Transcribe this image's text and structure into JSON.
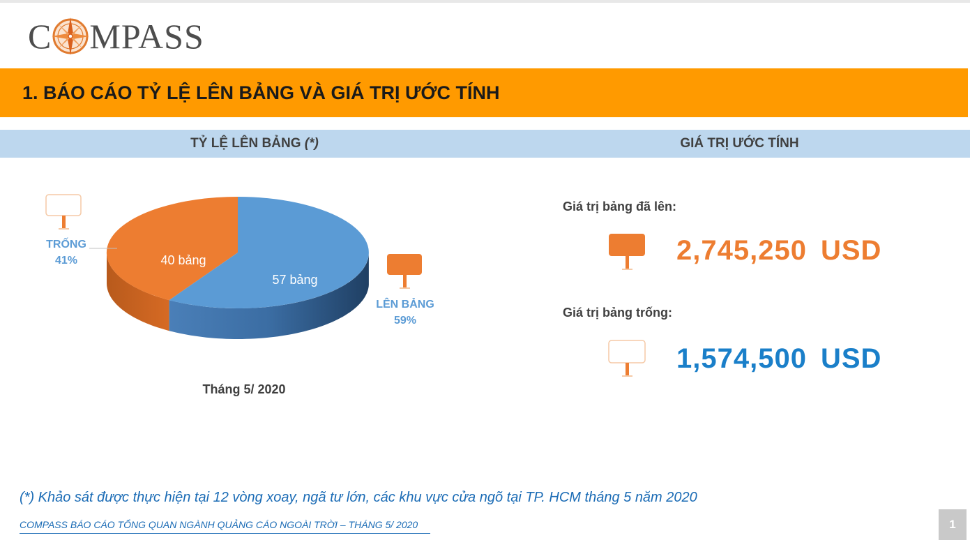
{
  "logo": {
    "text_before": "C",
    "text_after": "MPASS"
  },
  "banner": {
    "title": "1. BÁO CÁO TỶ LỆ LÊN BẢNG VÀ GIÁ TRỊ ƯỚC TÍNH"
  },
  "subheaders": {
    "left": "TỶ LỆ LÊN BẢNG",
    "left_suffix": "(*)",
    "right": "GIÁ TRỊ ƯỚC TÍNH"
  },
  "chart_data": {
    "type": "pie",
    "slices": [
      {
        "label": "TRỐNG",
        "percent": "41%",
        "value": 40,
        "data_label": "40 bảng",
        "color": "#ed7d31"
      },
      {
        "label": "LÊN BẢNG",
        "percent": "59%",
        "value": 57,
        "data_label": "57 bảng",
        "color": "#5b9bd5"
      }
    ],
    "caption": "Tháng 5/ 2020"
  },
  "estimates": {
    "used_label": "Giá trị bảng đã lên:",
    "used_value": "2,745,250",
    "used_unit": "USD",
    "empty_label": "Giá trị bảng trống:",
    "empty_value": "1,574,500",
    "empty_unit": "USD"
  },
  "colors": {
    "accent_orange": "#ff9a00",
    "series_orange": "#ed7d31",
    "series_blue": "#5b9bd5",
    "value_blue": "#1a7fc9"
  },
  "icons": [
    "compass-icon",
    "billboard-empty-icon",
    "billboard-filled-icon"
  ],
  "footnote": "(*) Khảo sát được thực hiện tại 12 vòng xoay, ngã tư lớn, các khu vực cửa ngõ tại TP. HCM tháng 5 năm 2020",
  "footer": "COMPASS BÁO CÁO TỔNG QUAN NGÀNH QUẢNG CÁO NGOÀI TRỜI – THÁNG 5/ 2020",
  "page_number": "1"
}
